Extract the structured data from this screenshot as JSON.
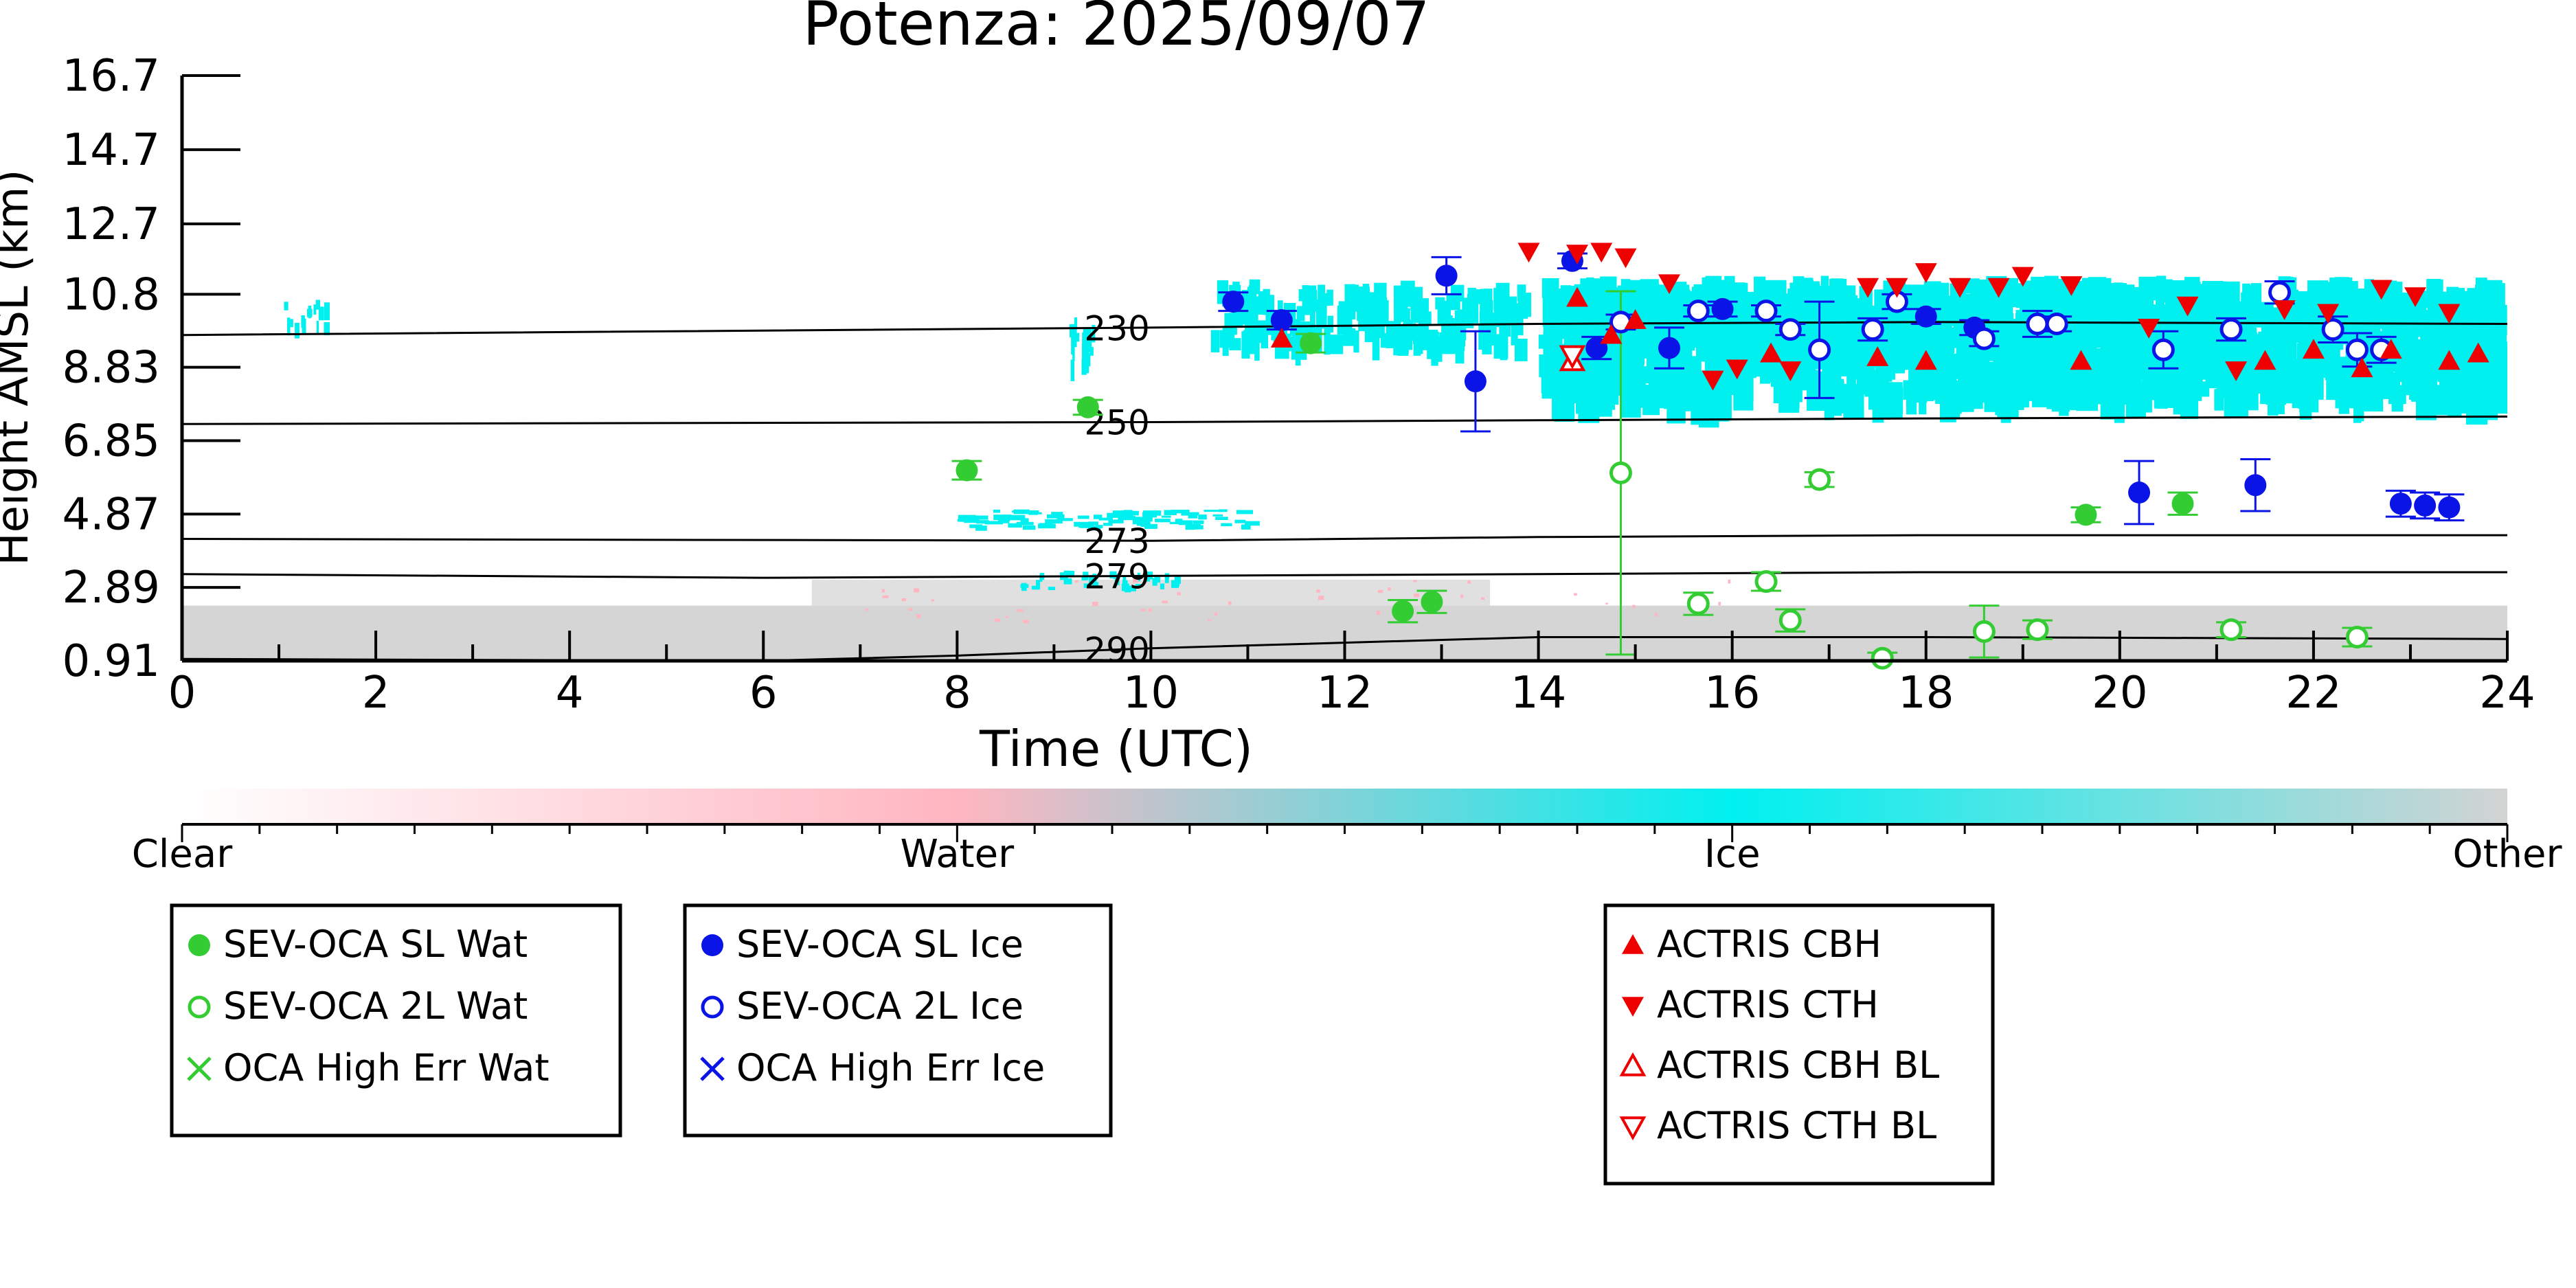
{
  "chart_data": {
    "type": "scatter",
    "title": "Potenza: 2025/09/07",
    "xlabel": "Time (UTC)",
    "ylabel": "Height AMSL (km)",
    "xlim": [
      0,
      24
    ],
    "ylim": [
      0.91,
      16.7
    ],
    "x_ticks": [
      "0",
      "2",
      "4",
      "6",
      "8",
      "10",
      "12",
      "14",
      "16",
      "18",
      "20",
      "22",
      "24"
    ],
    "y_ticks": [
      "0.91",
      "2.89",
      "4.87",
      "6.85",
      "8.83",
      "10.8",
      "12.7",
      "14.7",
      "16.7"
    ],
    "grid": false,
    "colorbar": {
      "labels": [
        "Clear",
        "Water",
        "Ice",
        "Other"
      ],
      "colors": [
        "#ffffff",
        "#ffb6c1",
        "#00f0f0",
        "#d3d3d3"
      ]
    },
    "contours": [
      {
        "label": "230",
        "points": [
          [
            0,
            9.7
          ],
          [
            10,
            9.9
          ],
          [
            14,
            10.0
          ],
          [
            18,
            10.05
          ],
          [
            24,
            10.0
          ]
        ]
      },
      {
        "label": "250",
        "points": [
          [
            0,
            7.3
          ],
          [
            10,
            7.35
          ],
          [
            14,
            7.4
          ],
          [
            18,
            7.45
          ],
          [
            24,
            7.5
          ]
        ]
      },
      {
        "label": "273",
        "points": [
          [
            0,
            4.2
          ],
          [
            10,
            4.15
          ],
          [
            14,
            4.25
          ],
          [
            18,
            4.3
          ],
          [
            24,
            4.3
          ]
        ]
      },
      {
        "label": "279",
        "points": [
          [
            0,
            3.25
          ],
          [
            6,
            3.15
          ],
          [
            10,
            3.2
          ],
          [
            14,
            3.25
          ],
          [
            18,
            3.3
          ],
          [
            24,
            3.3
          ]
        ]
      },
      {
        "label": "290",
        "points": [
          [
            0,
            0.96
          ],
          [
            6,
            0.91
          ],
          [
            8,
            1.05
          ],
          [
            10,
            1.25
          ],
          [
            14,
            1.55
          ],
          [
            18,
            1.55
          ],
          [
            24,
            1.5
          ]
        ]
      }
    ],
    "series": [
      {
        "name": "SEV-OCA SL Wat",
        "color": "#33cc33",
        "marker": "filled-circle",
        "points": [
          [
            8.1,
            6.05,
            0.25
          ],
          [
            9.35,
            7.75,
            0.2
          ],
          [
            11.65,
            9.48,
            0.25
          ],
          [
            12.6,
            2.25,
            0.3
          ],
          [
            12.9,
            2.5,
            0.3
          ],
          [
            19.65,
            4.85,
            0.2
          ],
          [
            20.65,
            5.15,
            0.3
          ]
        ]
      },
      {
        "name": "SEV-OCA 2L Wat",
        "color": "#33cc33",
        "marker": "open-circle",
        "points": [
          [
            14.85,
            5.98,
            4.9
          ],
          [
            15.65,
            2.45,
            0.3
          ],
          [
            16.35,
            3.05,
            0.25
          ],
          [
            16.6,
            2.0,
            0.3
          ],
          [
            16.9,
            5.8,
            0.2
          ],
          [
            17.55,
            0.98,
            0.15
          ],
          [
            18.6,
            1.7,
            0.7
          ],
          [
            19.15,
            1.75,
            0.25
          ],
          [
            21.15,
            1.75,
            0.2
          ],
          [
            22.45,
            1.55,
            0.25
          ]
        ]
      },
      {
        "name": "OCA High Err Wat",
        "color": "#33cc33",
        "marker": "x",
        "points": []
      },
      {
        "name": "SEV-OCA SL Ice",
        "color": "#0a14e6",
        "marker": "filled-circle",
        "points": [
          [
            10.85,
            10.6,
            0.25
          ],
          [
            11.35,
            10.1,
            0.25
          ],
          [
            13.05,
            11.3,
            0.5
          ],
          [
            13.35,
            8.45,
            1.35
          ],
          [
            14.35,
            11.7,
            0.2
          ],
          [
            14.6,
            9.35,
            0.3
          ],
          [
            15.35,
            9.35,
            0.55
          ],
          [
            15.9,
            10.4,
            0.2
          ],
          [
            18.0,
            10.2,
            0.2
          ],
          [
            18.5,
            9.9,
            0.2
          ],
          [
            20.2,
            5.45,
            0.85
          ],
          [
            21.4,
            5.65,
            0.7
          ],
          [
            22.9,
            5.15,
            0.35
          ],
          [
            23.15,
            5.1,
            0.35
          ],
          [
            23.4,
            5.05,
            0.35
          ]
        ]
      },
      {
        "name": "SEV-OCA 2L Ice",
        "color": "#0a14e6",
        "marker": "open-circle",
        "points": [
          [
            14.85,
            10.05,
            0.2
          ],
          [
            15.65,
            10.35,
            0.15
          ],
          [
            16.35,
            10.35,
            0.15
          ],
          [
            16.6,
            9.85,
            0.15
          ],
          [
            16.9,
            9.3,
            1.3
          ],
          [
            17.45,
            9.85,
            0.3
          ],
          [
            17.7,
            10.6,
            0.2
          ],
          [
            18.6,
            9.6,
            0.2
          ],
          [
            19.15,
            10.0,
            0.35
          ],
          [
            19.35,
            10.0,
            0.2
          ],
          [
            20.45,
            9.3,
            0.5
          ],
          [
            21.15,
            9.85,
            0.3
          ],
          [
            21.65,
            10.85,
            0.3
          ],
          [
            22.2,
            9.85,
            0.35
          ],
          [
            22.45,
            9.3,
            0.45
          ],
          [
            22.7,
            9.3,
            0.35
          ]
        ]
      },
      {
        "name": "OCA High Err Ice",
        "color": "#0a14e6",
        "marker": "x",
        "points": []
      },
      {
        "name": "ACTRIS CBH",
        "color": "#ee0000",
        "marker": "triangle-up",
        "points": [
          [
            11.35,
            9.6
          ],
          [
            14.4,
            10.7
          ],
          [
            14.75,
            9.7
          ],
          [
            15.0,
            10.1
          ],
          [
            16.4,
            9.2
          ],
          [
            17.5,
            9.1
          ],
          [
            18.0,
            9.0
          ],
          [
            19.6,
            9.0
          ],
          [
            21.5,
            9.0
          ],
          [
            22.0,
            9.3
          ],
          [
            22.5,
            8.8
          ],
          [
            22.8,
            9.3
          ],
          [
            23.4,
            9.0
          ],
          [
            23.7,
            9.2
          ]
        ]
      },
      {
        "name": "ACTRIS CTH",
        "color": "#ee0000",
        "marker": "triangle-down",
        "points": [
          [
            13.9,
            11.95
          ],
          [
            14.4,
            11.9
          ],
          [
            14.65,
            11.95
          ],
          [
            14.9,
            11.8
          ],
          [
            15.35,
            11.1
          ],
          [
            15.8,
            8.5
          ],
          [
            16.05,
            8.8
          ],
          [
            16.6,
            8.75
          ],
          [
            17.4,
            11.0
          ],
          [
            17.7,
            11.0
          ],
          [
            18.0,
            11.4
          ],
          [
            18.35,
            11.0
          ],
          [
            18.75,
            11.0
          ],
          [
            19.0,
            11.3
          ],
          [
            19.5,
            11.05
          ],
          [
            20.3,
            9.9
          ],
          [
            20.7,
            10.5
          ],
          [
            21.2,
            8.75
          ],
          [
            21.7,
            10.4
          ],
          [
            22.15,
            10.3
          ],
          [
            22.7,
            10.95
          ],
          [
            23.05,
            10.75
          ],
          [
            23.4,
            10.3
          ]
        ]
      },
      {
        "name": "ACTRIS CBH BL",
        "color": "#ee0000",
        "marker": "open-triangle-up",
        "points": [
          [
            14.35,
            9.0
          ]
        ]
      },
      {
        "name": "ACTRIS CTH BL",
        "color": "#ee0000",
        "marker": "open-triangle-down",
        "points": [
          [
            14.35,
            9.15
          ]
        ]
      }
    ],
    "legend_groups": [
      [
        "SEV-OCA SL Wat",
        "SEV-OCA 2L Wat",
        "OCA High Err Wat"
      ],
      [
        "SEV-OCA SL Ice",
        "SEV-OCA 2L Ice",
        "OCA High Err Ice"
      ],
      [
        "ACTRIS CBH",
        "ACTRIS CTH",
        "ACTRIS CBH BL",
        "ACTRIS CTH BL"
      ]
    ],
    "legend_position": "below plot"
  }
}
